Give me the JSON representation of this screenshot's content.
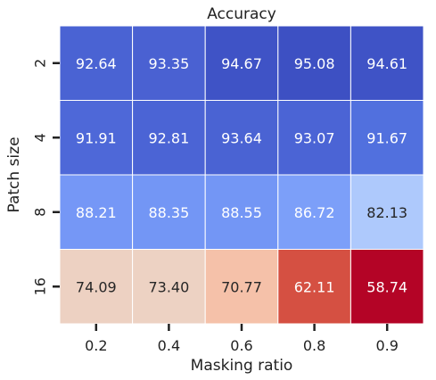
{
  "chart_data": {
    "type": "heatmap",
    "title": "Accuracy",
    "xlabel": "Masking ratio",
    "ylabel": "Patch size",
    "x_categories": [
      "0.2",
      "0.4",
      "0.6",
      "0.8",
      "0.9"
    ],
    "y_categories": [
      "2",
      "4",
      "8",
      "16"
    ],
    "values": [
      [
        92.64,
        93.35,
        94.67,
        95.08,
        94.61
      ],
      [
        91.91,
        92.81,
        93.64,
        93.07,
        91.67
      ],
      [
        88.21,
        88.35,
        88.55,
        86.72,
        82.13
      ],
      [
        74.09,
        73.4,
        70.77,
        62.11,
        58.74
      ]
    ],
    "value_labels": [
      [
        "92.64",
        "93.35",
        "94.67",
        "95.08",
        "94.61"
      ],
      [
        "91.91",
        "92.81",
        "93.64",
        "93.07",
        "91.67"
      ],
      [
        "88.21",
        "88.35",
        "88.55",
        "86.72",
        "82.13"
      ],
      [
        "74.09",
        "73.40",
        "70.77",
        "62.11",
        "58.74"
      ]
    ],
    "colormap": "coolwarm (reversed)",
    "cell_colors": [
      [
        "#4a63d3",
        "#4a61d2",
        "#3f53c6",
        "#3d50c3",
        "#3f53c6"
      ],
      [
        "#4e68d8",
        "#4b64d5",
        "#4a63d3",
        "#4b64d5",
        "#5170de"
      ],
      [
        "#7597f6",
        "#7396f5",
        "#7396f5",
        "#7c9ff9",
        "#aec9fc"
      ],
      [
        "#edd1c2",
        "#edd2c3",
        "#f5c1a9",
        "#d55042",
        "#b40426"
      ]
    ],
    "label_colors": [
      [
        "#ffffff",
        "#ffffff",
        "#ffffff",
        "#ffffff",
        "#ffffff"
      ],
      [
        "#ffffff",
        "#ffffff",
        "#ffffff",
        "#ffffff",
        "#ffffff"
      ],
      [
        "#ffffff",
        "#ffffff",
        "#ffffff",
        "#ffffff",
        "#262626"
      ],
      [
        "#262626",
        "#262626",
        "#262626",
        "#ffffff",
        "#ffffff"
      ]
    ]
  }
}
